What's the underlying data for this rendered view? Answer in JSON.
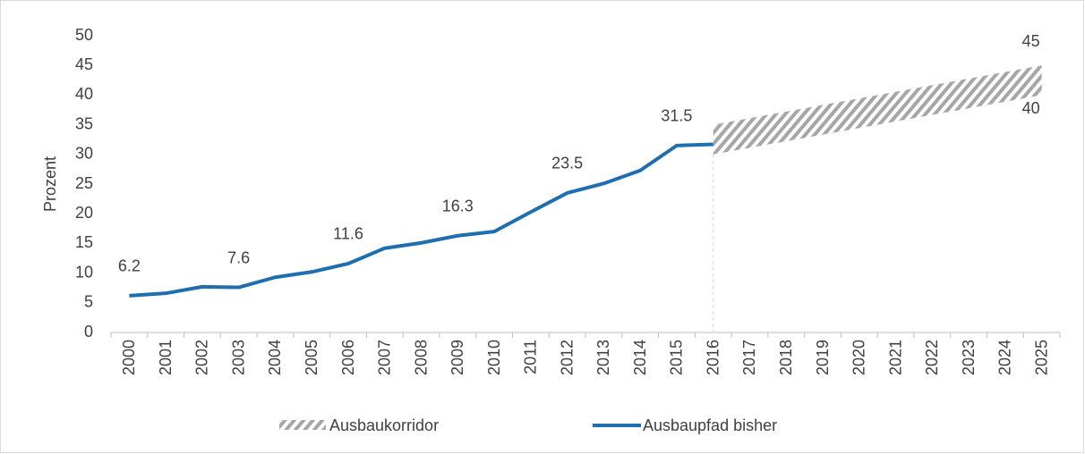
{
  "chart_data": {
    "type": "line",
    "y_label": "Prozent",
    "categories": [
      "2000",
      "2001",
      "2002",
      "2003",
      "2004",
      "2005",
      "2006",
      "2007",
      "2008",
      "2009",
      "2010",
      "2011",
      "2012",
      "2013",
      "2014",
      "2015",
      "2016",
      "2017",
      "2018",
      "2019",
      "2020",
      "2021",
      "2022",
      "2023",
      "2024",
      "2025"
    ],
    "series": [
      {
        "name": "Ausbaukorridor",
        "color": "#a6a6a6",
        "low": [
          null,
          null,
          null,
          null,
          null,
          null,
          null,
          null,
          null,
          null,
          null,
          null,
          null,
          null,
          null,
          null,
          30,
          null,
          null,
          null,
          null,
          null,
          null,
          null,
          null,
          40
        ],
        "high": [
          null,
          null,
          null,
          null,
          null,
          null,
          null,
          null,
          null,
          null,
          null,
          null,
          null,
          null,
          null,
          null,
          35,
          null,
          null,
          null,
          null,
          null,
          null,
          null,
          null,
          45
        ],
        "low_labels": [
          null,
          null,
          null,
          null,
          null,
          null,
          null,
          null,
          null,
          null,
          null,
          null,
          null,
          null,
          null,
          null,
          null,
          null,
          null,
          null,
          null,
          null,
          null,
          null,
          null,
          "40"
        ],
        "high_labels": [
          null,
          null,
          null,
          null,
          null,
          null,
          null,
          null,
          null,
          null,
          null,
          null,
          null,
          null,
          null,
          null,
          null,
          null,
          null,
          null,
          null,
          null,
          null,
          null,
          null,
          "45"
        ]
      },
      {
        "name": "Ausbaupfad bisher",
        "color": "#1f6fb0",
        "values": [
          6.2,
          6.6,
          7.7,
          7.6,
          9.3,
          10.2,
          11.6,
          14.2,
          15.1,
          16.3,
          17.0,
          20.3,
          23.5,
          25.1,
          27.3,
          31.5,
          31.7,
          null,
          null,
          null,
          null,
          null,
          null,
          null,
          null,
          null
        ],
        "value_labels": [
          "6.2",
          null,
          null,
          "7.6",
          null,
          null,
          "11.6",
          null,
          null,
          "16.3",
          null,
          null,
          "23.5",
          null,
          null,
          "31.5",
          null,
          null,
          null,
          null,
          null,
          null,
          null,
          null,
          null,
          null
        ]
      }
    ],
    "ylim": [
      0,
      50
    ],
    "yticks": [
      0,
      5,
      10,
      15,
      20,
      25,
      30,
      35,
      40,
      45,
      50
    ],
    "grid": false
  }
}
